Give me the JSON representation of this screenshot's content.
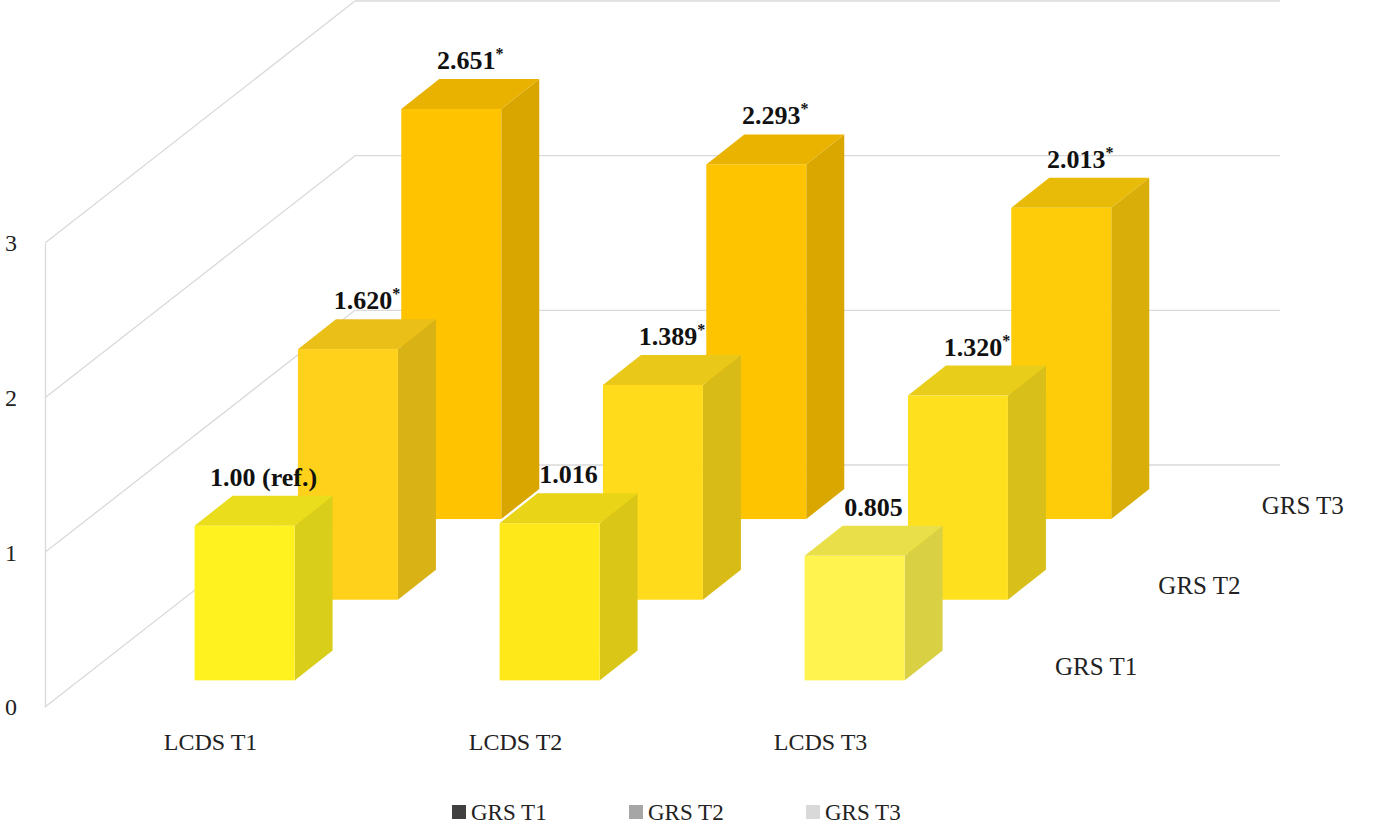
{
  "chart_data": {
    "type": "bar",
    "categories": [
      "LCDS T1",
      "LCDS T2",
      "LCDS T3"
    ],
    "series": [
      {
        "name": "GRS T1",
        "color": "#404040",
        "colors": [
          "#fff21f",
          "#ffe81a",
          "#fff44f"
        ],
        "values": [
          1.0,
          1.016,
          0.805
        ],
        "value_labels": [
          "1.00 (ref.)",
          "1.016",
          "0.805"
        ]
      },
      {
        "name": "GRS T2",
        "color": "#a6a6a6",
        "colors": [
          "#ffd11a",
          "#ffdb1c",
          "#ffe01e"
        ],
        "values": [
          1.62,
          1.389,
          1.32
        ],
        "value_labels": [
          "1.620*",
          "1.389*",
          "1.320*"
        ]
      },
      {
        "name": "GRS T3",
        "color": "#d9d9d9",
        "colors": [
          "#ffc300",
          "#ffc400",
          "#ffcc0a"
        ],
        "values": [
          2.651,
          2.293,
          2.013
        ],
        "value_labels": [
          "2.651*",
          "2.293*",
          "2.013*"
        ]
      }
    ],
    "ylim": [
      0,
      3
    ],
    "yticks": [
      0,
      1,
      2,
      3
    ],
    "grid": true,
    "data_labels": true,
    "legend": "bottom"
  }
}
